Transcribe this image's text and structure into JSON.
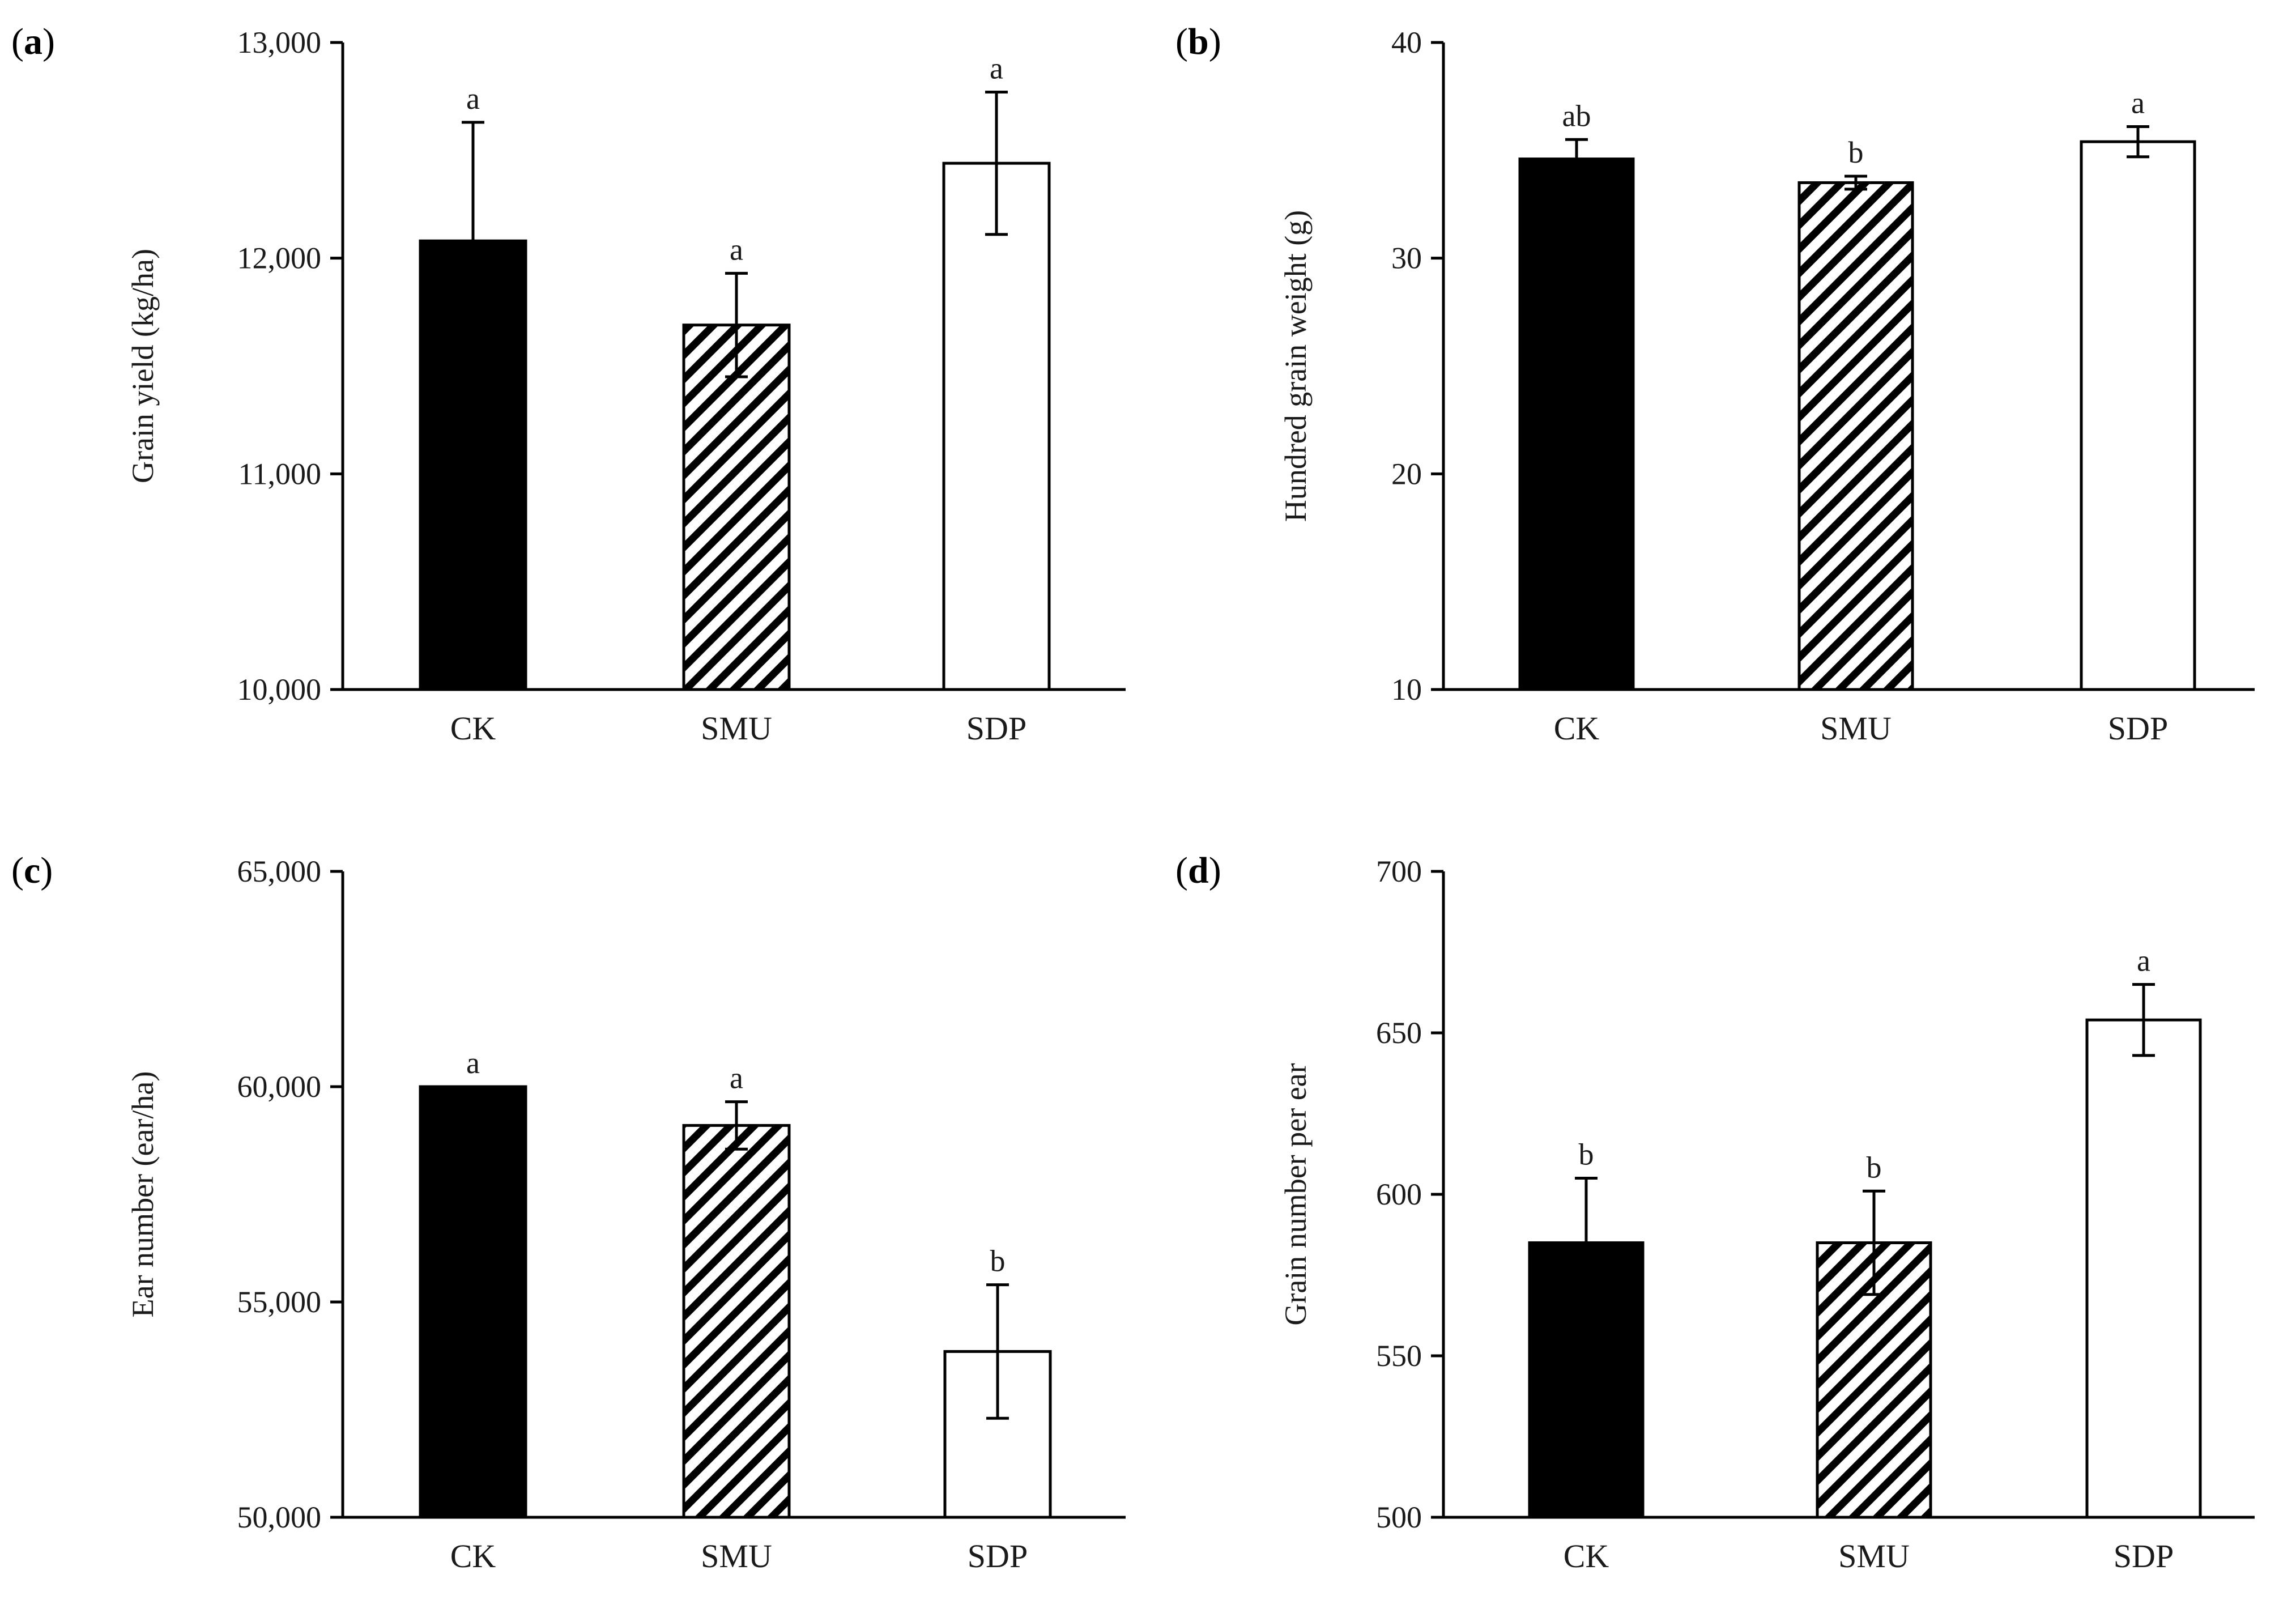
{
  "colors": {
    "ink": "#000000",
    "fill_ck": "#000000",
    "fill_smu": "#ffffff",
    "fill_sdp": "#ffffff",
    "background": "#ffffff"
  },
  "chart_data": [
    {
      "type": "bar",
      "panel_label": "a",
      "categories": [
        "CK",
        "SMU",
        "SDP"
      ],
      "values": [
        12080,
        11690,
        12440
      ],
      "errors": [
        550,
        240,
        330
      ],
      "significance": [
        "a",
        "a",
        "a"
      ],
      "patterns": [
        "solid",
        "hatched",
        "empty"
      ],
      "ylabel": "Grain yield (kg/ha)",
      "ylim": [
        10000,
        13000
      ],
      "yticks": [
        10000,
        11000,
        12000,
        13000
      ],
      "ytick_labels": [
        "10,000",
        "11,000",
        "12,000",
        "13,000"
      ]
    },
    {
      "type": "bar",
      "panel_label": "b",
      "categories": [
        "CK",
        "SMU",
        "SDP"
      ],
      "values": [
        34.6,
        33.5,
        35.4
      ],
      "errors": [
        0.9,
        0.3,
        0.7
      ],
      "significance": [
        "ab",
        "b",
        "a"
      ],
      "patterns": [
        "solid",
        "hatched",
        "empty"
      ],
      "ylabel": "Hundred grain weight (g)",
      "ylim": [
        10,
        40
      ],
      "yticks": [
        10,
        20,
        30,
        40
      ],
      "ytick_labels": [
        "10",
        "20",
        "30",
        "40"
      ]
    },
    {
      "type": "bar",
      "panel_label": "c",
      "categories": [
        "CK",
        "SMU",
        "SDP"
      ],
      "values": [
        60000,
        59100,
        53850
      ],
      "errors": [
        0,
        550,
        1550
      ],
      "significance": [
        "a",
        "a",
        "b"
      ],
      "patterns": [
        "solid",
        "hatched",
        "empty"
      ],
      "ylabel": "Ear number (ear/ha)",
      "ylim": [
        50000,
        65000
      ],
      "yticks": [
        50000,
        55000,
        60000,
        65000
      ],
      "ytick_labels": [
        "50,000",
        "55,000",
        "60,000",
        "65,000"
      ]
    },
    {
      "type": "bar",
      "panel_label": "d",
      "categories": [
        "CK",
        "SMU",
        "SDP"
      ],
      "values": [
        585,
        585,
        654
      ],
      "errors": [
        20,
        16,
        11
      ],
      "significance": [
        "b",
        "b",
        "a"
      ],
      "patterns": [
        "solid",
        "hatched",
        "empty"
      ],
      "ylabel": "Grain number per ear",
      "ylim": [
        500,
        700
      ],
      "yticks": [
        500,
        550,
        600,
        650,
        700
      ],
      "ytick_labels": [
        "500",
        "550",
        "600",
        "650",
        "700"
      ]
    }
  ]
}
